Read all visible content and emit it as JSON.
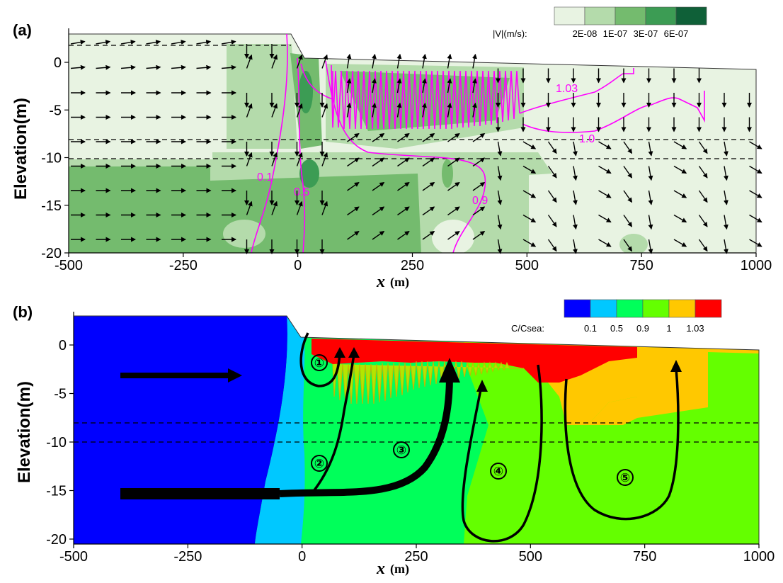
{
  "chart_data": [
    {
      "panel": "(a)",
      "type": "contour_vector",
      "xlabel_symbol": "x",
      "xlabel_unit": "(m)",
      "ylabel": "Elevation(m)",
      "xlim": [
        -500,
        1000
      ],
      "ylim": [
        -20,
        3
      ],
      "xticks": [
        -500,
        -250,
        0,
        250,
        500,
        750,
        1000
      ],
      "yticks": [
        0,
        -5,
        -10,
        -15,
        -20
      ],
      "aquitard_lines_elevation": [
        -8,
        -10
      ],
      "colorbar": {
        "title": "|V|(m/s):",
        "labels": [
          "2E-08",
          "1E-07",
          "3E-07",
          "6E-07"
        ],
        "colors": [
          "#e8f3e2",
          "#b4dbab",
          "#74bb6e",
          "#3c9c54",
          "#0f6038"
        ]
      },
      "contour_labels": [
        {
          "label": "0.1",
          "x": -60,
          "y": -12
        },
        {
          "label": "0.5",
          "x": 15,
          "y": -13.5
        },
        {
          "label": "0.9",
          "x": 410,
          "y": -14.5
        },
        {
          "label": "1.0",
          "x": 655,
          "y": -8
        },
        {
          "label": "1.03",
          "x": 650,
          "y": -2.5
        }
      ],
      "contour_color": "#ff00ff"
    },
    {
      "panel": "(b)",
      "type": "filled_contour",
      "xlabel_symbol": "x",
      "xlabel_unit": "(m)",
      "ylabel": "Elevation(m)",
      "xlim": [
        -500,
        1000
      ],
      "ylim": [
        -20,
        3
      ],
      "xticks": [
        -500,
        -250,
        0,
        250,
        500,
        750,
        1000
      ],
      "yticks": [
        0,
        -5,
        -10,
        -15,
        -20
      ],
      "aquitard_lines_elevation": [
        -8,
        -10
      ],
      "colorbar": {
        "title": "C/Csea:",
        "labels": [
          "0.1",
          "0.5",
          "0.9",
          "1",
          "1.03"
        ],
        "colors": [
          "#0000ff",
          "#00c8ff",
          "#00ff5a",
          "#64ff00",
          "#ffc800",
          "#ff0000"
        ]
      },
      "flow_path_labels": [
        "①",
        "②",
        "③",
        "④",
        "⑤"
      ]
    }
  ]
}
